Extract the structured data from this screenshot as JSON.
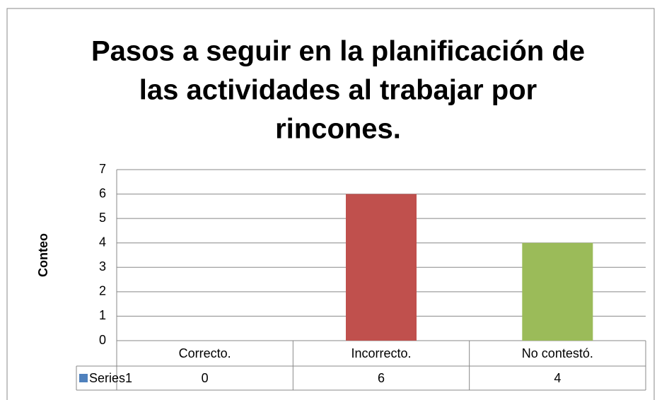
{
  "chart_data": {
    "type": "bar",
    "title": [
      "Pasos a seguir en la planificación de",
      "las actividades al trabajar por",
      "rincones."
    ],
    "y_label": "Conteo",
    "categories": [
      "Correcto.",
      "Incorrecto.",
      "No contestó."
    ],
    "series": [
      {
        "name": "Series1",
        "color": "#4f81bd",
        "values": [
          0,
          6,
          4
        ],
        "point_colors": [
          "#4f81bd",
          "#c0504d",
          "#9bbb59"
        ]
      }
    ],
    "ylim": [
      0,
      7
    ],
    "yticks": [
      0,
      1,
      2,
      3,
      4,
      5,
      6,
      7
    ],
    "grid": true,
    "data_table": true
  }
}
